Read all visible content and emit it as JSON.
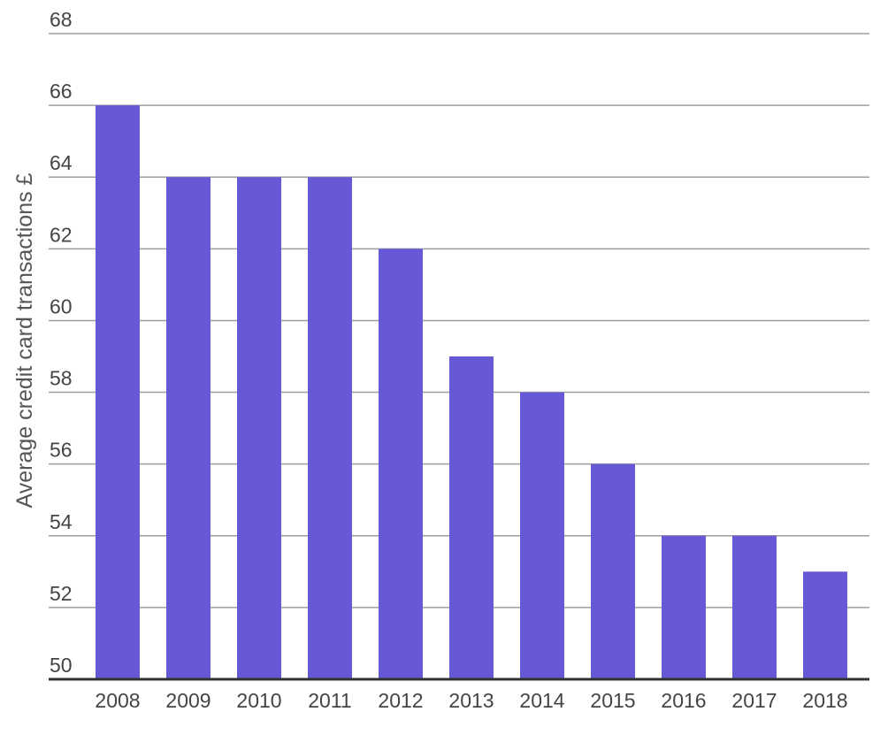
{
  "chart_data": {
    "type": "bar",
    "categories": [
      "2008",
      "2009",
      "2010",
      "2011",
      "2012",
      "2013",
      "2014",
      "2015",
      "2016",
      "2017",
      "2018"
    ],
    "values": [
      66,
      64,
      64,
      64,
      62,
      59,
      58,
      56,
      54,
      54,
      53
    ],
    "title": "",
    "xlabel": "",
    "ylabel": "Average credit card transactions £",
    "ylim": [
      50,
      68
    ],
    "yticks": [
      "50",
      "52",
      "54",
      "56",
      "58",
      "60",
      "62",
      "64",
      "66",
      "68"
    ],
    "grid": true,
    "legend": "none",
    "bar_color": "#6759d6"
  }
}
